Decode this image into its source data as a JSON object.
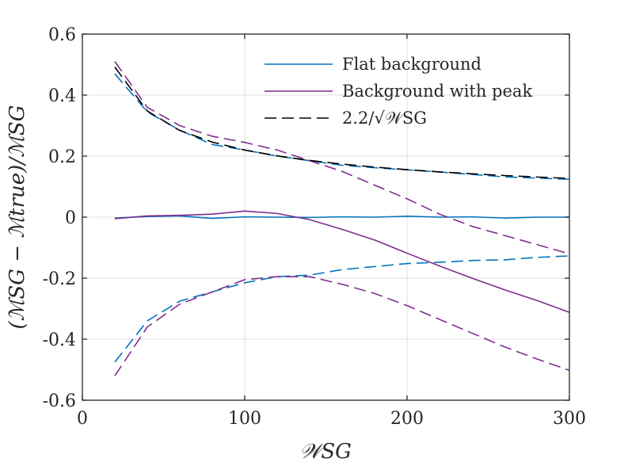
{
  "chart_data": {
    "type": "line",
    "title": "",
    "xlabel": "𝒲SG",
    "ylabel": "(ℳSG − ℳtrue)/ℳSG",
    "xlim": [
      0,
      300
    ],
    "ylim": [
      -0.6,
      0.6
    ],
    "xticks": [
      0,
      100,
      200,
      300
    ],
    "xtick_labels": [
      "0",
      "100",
      "200",
      "300"
    ],
    "yticks": [
      -0.6,
      -0.4,
      -0.2,
      0,
      0.2,
      0.4,
      0.6
    ],
    "ytick_labels": [
      "-0.6",
      "-0.4",
      "-0.2",
      "0",
      "0.2",
      "0.4",
      "0.6"
    ],
    "grid": true,
    "legend_position": "top-right",
    "series": [
      {
        "name": "Flat background",
        "in_legend": true,
        "color": "#0072bd",
        "dash": "solid",
        "x": [
          20,
          40,
          60,
          80,
          100,
          120,
          140,
          160,
          180,
          200,
          220,
          240,
          260,
          280,
          300
        ],
        "values": [
          -0.003,
          0.002,
          0.004,
          -0.004,
          0.001,
          0.0,
          -0.001,
          0.001,
          0.0,
          0.003,
          0.0,
          0.001,
          -0.003,
          0.0,
          0.0
        ]
      },
      {
        "name": "Flat background +σ",
        "in_legend": false,
        "color": "#0072bd",
        "dash": "dashed",
        "x": [
          20,
          40,
          60,
          80,
          100,
          120,
          140,
          160,
          180,
          200,
          220,
          240,
          260,
          280,
          300
        ],
        "values": [
          0.47,
          0.345,
          0.285,
          0.238,
          0.22,
          0.2,
          0.185,
          0.17,
          0.162,
          0.155,
          0.148,
          0.14,
          0.132,
          0.128,
          0.124
        ]
      },
      {
        "name": "Flat background −σ",
        "in_legend": false,
        "color": "#0072bd",
        "dash": "dashed",
        "x": [
          20,
          40,
          60,
          80,
          100,
          120,
          140,
          160,
          180,
          200,
          220,
          240,
          260,
          280,
          300
        ],
        "values": [
          -0.475,
          -0.34,
          -0.275,
          -0.245,
          -0.215,
          -0.195,
          -0.19,
          -0.172,
          -0.162,
          -0.152,
          -0.148,
          -0.142,
          -0.14,
          -0.132,
          -0.127
        ]
      },
      {
        "name": "Background with peak",
        "in_legend": true,
        "color": "#7e2f8e",
        "dash": "solid",
        "x": [
          20,
          40,
          60,
          80,
          100,
          120,
          140,
          160,
          180,
          200,
          220,
          240,
          260,
          280,
          300
        ],
        "values": [
          -0.005,
          0.004,
          0.006,
          0.01,
          0.02,
          0.012,
          -0.008,
          -0.04,
          -0.075,
          -0.118,
          -0.16,
          -0.2,
          -0.238,
          -0.273,
          -0.312
        ]
      },
      {
        "name": "Background with peak +σ",
        "in_legend": false,
        "color": "#7e2f8e",
        "dash": "dashed",
        "x": [
          20,
          40,
          60,
          80,
          100,
          120,
          140,
          160,
          180,
          200,
          220,
          240,
          260,
          280,
          300
        ],
        "values": [
          0.51,
          0.36,
          0.3,
          0.265,
          0.245,
          0.22,
          0.185,
          0.15,
          0.105,
          0.06,
          0.01,
          -0.03,
          -0.06,
          -0.09,
          -0.12
        ]
      },
      {
        "name": "Background with peak −σ",
        "in_legend": false,
        "color": "#7e2f8e",
        "dash": "dashed",
        "x": [
          20,
          40,
          60,
          80,
          100,
          120,
          140,
          160,
          180,
          200,
          220,
          240,
          260,
          280,
          300
        ],
        "values": [
          -0.52,
          -0.36,
          -0.285,
          -0.245,
          -0.205,
          -0.195,
          -0.195,
          -0.22,
          -0.25,
          -0.29,
          -0.335,
          -0.38,
          -0.425,
          -0.465,
          -0.502
        ]
      },
      {
        "name": "2.2/√𝒲SG",
        "in_legend": true,
        "color": "#000000",
        "dash": "dashed",
        "x": [
          20,
          40,
          60,
          80,
          100,
          120,
          140,
          160,
          180,
          200,
          220,
          240,
          260,
          280,
          300
        ],
        "values": [
          0.4919,
          0.3479,
          0.284,
          0.246,
          0.22,
          0.2008,
          0.1859,
          0.1739,
          0.164,
          0.1556,
          0.1483,
          0.142,
          0.1364,
          0.1315,
          0.127
        ]
      }
    ]
  }
}
